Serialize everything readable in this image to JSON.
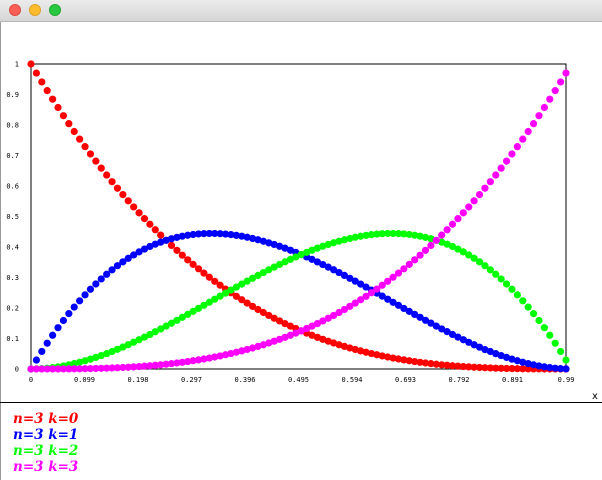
{
  "window": {
    "controls": [
      "close",
      "minimize",
      "maximize"
    ]
  },
  "chart_data": {
    "type": "scatter",
    "title": "",
    "xlabel": "x",
    "ylabel": "",
    "xlim": [
      0,
      0.99
    ],
    "ylim": [
      0,
      1
    ],
    "x_ticks": [
      "0",
      "0.099",
      "0.198",
      "0.297",
      "0.396",
      "0.495",
      "0.594",
      "0.693",
      "0.792",
      "0.891",
      "0.99"
    ],
    "y_ticks": [
      "0",
      "0.1",
      "0.2",
      "0.3",
      "0.4",
      "0.5",
      "0.6",
      "0.7",
      "0.8",
      "0.9",
      "1"
    ],
    "x": [
      0,
      0.01,
      0.02,
      0.03,
      0.04,
      0.05,
      0.06,
      0.07,
      0.08,
      0.09,
      0.1,
      0.11,
      0.12,
      0.13,
      0.14,
      0.15,
      0.16,
      0.17,
      0.18,
      0.19,
      0.2,
      0.21,
      0.22,
      0.23,
      0.24,
      0.25,
      0.26,
      0.27,
      0.28,
      0.29,
      0.3,
      0.31,
      0.32,
      0.33,
      0.34,
      0.35,
      0.36,
      0.37,
      0.38,
      0.39,
      0.4,
      0.41,
      0.42,
      0.43,
      0.44,
      0.45,
      0.46,
      0.47,
      0.48,
      0.49,
      0.5,
      0.51,
      0.52,
      0.53,
      0.54,
      0.55,
      0.56,
      0.57,
      0.58,
      0.59,
      0.6,
      0.61,
      0.62,
      0.63,
      0.64,
      0.65,
      0.66,
      0.67,
      0.68,
      0.69,
      0.7,
      0.71,
      0.72,
      0.73,
      0.74,
      0.75,
      0.76,
      0.77,
      0.78,
      0.79,
      0.8,
      0.81,
      0.82,
      0.83,
      0.84,
      0.85,
      0.86,
      0.87,
      0.88,
      0.89,
      0.9,
      0.91,
      0.92,
      0.93,
      0.94,
      0.95,
      0.96,
      0.97,
      0.98,
      0.99
    ],
    "series": [
      {
        "name": "n=3 k=0",
        "color": "#ff0000",
        "values": [
          1.0,
          0.9703,
          0.9412,
          0.9127,
          0.8847,
          0.8574,
          0.8306,
          0.8044,
          0.7787,
          0.7536,
          0.729,
          0.705,
          0.6815,
          0.6585,
          0.636,
          0.6141,
          0.5927,
          0.5718,
          0.5514,
          0.5314,
          0.512,
          0.493,
          0.4746,
          0.4565,
          0.439,
          0.4219,
          0.4052,
          0.389,
          0.3732,
          0.3579,
          0.343,
          0.3285,
          0.3144,
          0.3008,
          0.2875,
          0.2746,
          0.2621,
          0.25,
          0.2383,
          0.227,
          0.216,
          0.2054,
          0.1951,
          0.1852,
          0.1756,
          0.1664,
          0.1575,
          0.1489,
          0.1406,
          0.1327,
          0.125,
          0.1176,
          0.1106,
          0.1038,
          0.0973,
          0.0911,
          0.0852,
          0.0795,
          0.0741,
          0.0689,
          0.064,
          0.0593,
          0.0549,
          0.0507,
          0.0467,
          0.0429,
          0.0393,
          0.0359,
          0.0328,
          0.0298,
          0.027,
          0.0244,
          0.022,
          0.0197,
          0.0176,
          0.0156,
          0.0138,
          0.0122,
          0.0106,
          0.0093,
          0.008,
          0.0069,
          0.0058,
          0.0049,
          0.0041,
          0.0034,
          0.0027,
          0.0022,
          0.0017,
          0.0013,
          0.001,
          0.0007,
          0.0005,
          0.0003,
          0.0002,
          0.0001,
          0.0001,
          0.0,
          0.0,
          0.0
        ]
      },
      {
        "name": "n=3 k=1",
        "color": "#0000ff",
        "values": [
          0.0,
          0.0294,
          0.0576,
          0.0847,
          0.1106,
          0.1354,
          0.159,
          0.1816,
          0.2031,
          0.2236,
          0.243,
          0.2614,
          0.2788,
          0.2952,
          0.3106,
          0.3251,
          0.3387,
          0.3513,
          0.363,
          0.3739,
          0.384,
          0.3932,
          0.4016,
          0.4092,
          0.4159,
          0.4219,
          0.4271,
          0.4316,
          0.4354,
          0.4385,
          0.441,
          0.4428,
          0.4439,
          0.4444,
          0.4443,
          0.4436,
          0.4424,
          0.4406,
          0.4382,
          0.4354,
          0.432,
          0.4281,
          0.4238,
          0.4189,
          0.4136,
          0.4084,
          0.4024,
          0.3962,
          0.3894,
          0.3824,
          0.375,
          0.3674,
          0.3594,
          0.351,
          0.3424,
          0.3341,
          0.3253,
          0.3162,
          0.3069,
          0.2974,
          0.288,
          0.2783,
          0.2686,
          0.2589,
          0.2488,
          0.2389,
          0.2288,
          0.2187,
          0.2089,
          0.1986,
          0.189,
          0.179,
          0.1694,
          0.1597,
          0.1503,
          0.1406,
          0.1313,
          0.1225,
          0.1131,
          0.1046,
          0.096,
          0.0875,
          0.0794,
          0.0715,
          0.0635,
          0.0574,
          0.0503,
          0.0441,
          0.038,
          0.0323,
          0.027,
          0.0221,
          0.0177,
          0.0137,
          0.0101,
          0.0071,
          0.0046,
          0.0026,
          0.0012,
          0.0003
        ]
      },
      {
        "name": "n=3 k=2",
        "color": "#00ff00",
        "values": [
          0.0,
          0.0003,
          0.0012,
          0.0026,
          0.0046,
          0.0071,
          0.0101,
          0.0137,
          0.0177,
          0.0221,
          0.027,
          0.0323,
          0.038,
          0.0441,
          0.0503,
          0.0574,
          0.0645,
          0.072,
          0.0797,
          0.0877,
          0.096,
          0.1045,
          0.1132,
          0.1222,
          0.1313,
          0.1406,
          0.15,
          0.1596,
          0.1693,
          0.1791,
          0.189,
          0.1989,
          0.2089,
          0.2189,
          0.2289,
          0.2389,
          0.2488,
          0.2587,
          0.2686,
          0.2783,
          0.288,
          0.2975,
          0.3069,
          0.3162,
          0.3252,
          0.3341,
          0.3428,
          0.3512,
          0.3594,
          0.3674,
          0.375,
          0.3824,
          0.3894,
          0.3962,
          0.4025,
          0.4084,
          0.4139,
          0.419,
          0.4237,
          0.4279,
          0.432,
          0.4352,
          0.4381,
          0.4405,
          0.4424,
          0.4436,
          0.4443,
          0.4444,
          0.4439,
          0.4428,
          0.441,
          0.4385,
          0.4354,
          0.4316,
          0.4271,
          0.4219,
          0.4159,
          0.4092,
          0.4016,
          0.3932,
          0.384,
          0.3739,
          0.363,
          0.3513,
          0.3387,
          0.3251,
          0.3106,
          0.2952,
          0.2788,
          0.2614,
          0.243,
          0.2236,
          0.2031,
          0.1816,
          0.159,
          0.1354,
          0.1106,
          0.0847,
          0.0576,
          0.0294
        ]
      },
      {
        "name": "n=3 k=3",
        "color": "#ff00ff",
        "values": [
          0.0,
          0.0,
          0.0,
          0.0,
          0.0001,
          0.0001,
          0.0002,
          0.0003,
          0.0005,
          0.0007,
          0.001,
          0.0013,
          0.0017,
          0.0022,
          0.0027,
          0.0034,
          0.0041,
          0.0049,
          0.0058,
          0.0069,
          0.008,
          0.0093,
          0.0106,
          0.0122,
          0.0138,
          0.0156,
          0.0176,
          0.0197,
          0.022,
          0.0244,
          0.027,
          0.0298,
          0.0328,
          0.0359,
          0.0393,
          0.0429,
          0.0467,
          0.0507,
          0.0549,
          0.0593,
          0.064,
          0.0689,
          0.0741,
          0.0795,
          0.0852,
          0.0911,
          0.0973,
          0.1038,
          0.1106,
          0.1176,
          0.125,
          0.1327,
          0.1406,
          0.1489,
          0.1575,
          0.1664,
          0.1756,
          0.1852,
          0.1951,
          0.2054,
          0.216,
          0.227,
          0.2383,
          0.25,
          0.2621,
          0.2746,
          0.2875,
          0.3008,
          0.3144,
          0.3285,
          0.343,
          0.3579,
          0.3732,
          0.389,
          0.4052,
          0.4219,
          0.439,
          0.4565,
          0.4746,
          0.493,
          0.512,
          0.5314,
          0.5514,
          0.5718,
          0.5927,
          0.6141,
          0.636,
          0.6585,
          0.6815,
          0.705,
          0.729,
          0.7536,
          0.7787,
          0.8044,
          0.8306,
          0.8574,
          0.8847,
          0.9127,
          0.9412,
          0.9703
        ]
      }
    ],
    "legend": "bottom-left",
    "grid": false
  }
}
